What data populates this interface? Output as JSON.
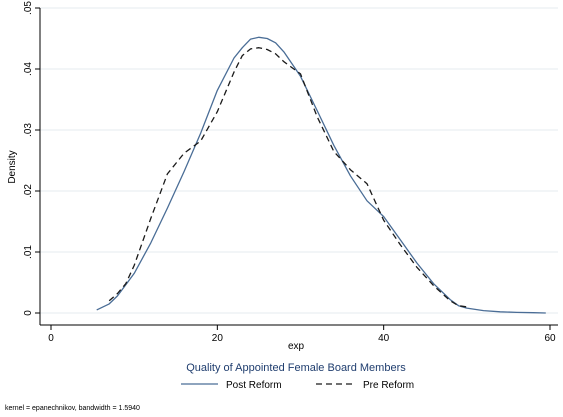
{
  "chart_data": {
    "type": "line",
    "xlabel": "exp",
    "ylabel": "Density",
    "xlim": [
      0,
      60
    ],
    "ylim": [
      0,
      0.05
    ],
    "x_ticks": [
      0,
      20,
      40,
      60
    ],
    "x_tick_labels": [
      "0",
      "20",
      "40",
      "60"
    ],
    "y_ticks": [
      0,
      0.01,
      0.02,
      0.03,
      0.04,
      0.05
    ],
    "y_tick_labels": [
      "0",
      ".01",
      ".02",
      ".03",
      ".04",
      ".05"
    ],
    "grid": "horizontal",
    "legend": {
      "title": "Quality of Appointed Female Board Members",
      "placement": "bottom"
    },
    "note": "kernel = epanechnikov, bandwidth = 1.5940",
    "colors": {
      "post_reform": "#4a6d96",
      "pre_reform": "#1a1a1a",
      "grid": "#e6ebef",
      "legend_title": "#1f3d6e"
    },
    "series": [
      {
        "name": "Post Reform",
        "style": "solid",
        "x": [
          5.5,
          7,
          8,
          10,
          12,
          14,
          16,
          18,
          20,
          22,
          23,
          24,
          25,
          26,
          27,
          28,
          30,
          32,
          34,
          36,
          38,
          40,
          42,
          44,
          46,
          48,
          49,
          50,
          52,
          54,
          56,
          58,
          59.5
        ],
        "y": [
          0.0005,
          0.0015,
          0.0028,
          0.0065,
          0.0115,
          0.0172,
          0.0232,
          0.0295,
          0.0365,
          0.0418,
          0.0435,
          0.0449,
          0.0452,
          0.045,
          0.0443,
          0.0428,
          0.0388,
          0.0332,
          0.0275,
          0.0225,
          0.0184,
          0.0158,
          0.012,
          0.0082,
          0.0048,
          0.0022,
          0.0012,
          0.0008,
          0.0004,
          0.0002,
          0.0001,
          5e-05,
          0.0
        ]
      },
      {
        "name": "Pre Reform",
        "style": "dashed",
        "x": [
          7,
          8,
          9,
          10,
          12,
          14,
          16,
          18,
          20,
          22,
          23,
          24,
          25,
          26,
          27,
          28,
          30,
          32,
          34,
          36,
          38,
          40,
          42,
          44,
          46,
          48,
          49,
          50
        ],
        "y": [
          0.002,
          0.0032,
          0.0048,
          0.0078,
          0.0155,
          0.0228,
          0.0262,
          0.0282,
          0.033,
          0.0395,
          0.0422,
          0.0433,
          0.0435,
          0.0432,
          0.0425,
          0.0412,
          0.0392,
          0.0322,
          0.0265,
          0.0235,
          0.0212,
          0.0152,
          0.0112,
          0.0075,
          0.0045,
          0.002,
          0.0012,
          0.001
        ]
      }
    ]
  }
}
